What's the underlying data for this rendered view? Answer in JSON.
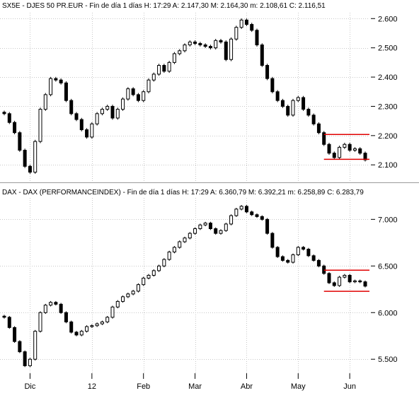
{
  "chart_data": [
    {
      "type": "candlestick",
      "header": "SX5E - DJES 50 PR.EUR - Fin de día 1 días  H: 17:29  A: 2.147,30  M: 2.164,30  m: 2.108,61  C: 2.116,51",
      "y_ticks": [
        "2.600",
        "2.500",
        "2.400",
        "2.300",
        "2.200",
        "2.100"
      ],
      "y_tick_values": [
        2600,
        2500,
        2400,
        2300,
        2200,
        2100
      ],
      "ylim": [
        2045,
        2620
      ],
      "grid": true,
      "series": [
        {
          "values": [
            2275,
            2245,
            2210,
            2150,
            2095,
            2075,
            2180,
            2290,
            2340,
            2395,
            2390,
            2380,
            2320,
            2275,
            2255,
            2220,
            2195,
            2240,
            2275,
            2290,
            2300,
            2260,
            2290,
            2325,
            2360,
            2340,
            2320,
            2350,
            2390,
            2410,
            2440,
            2420,
            2450,
            2480,
            2490,
            2510,
            2520,
            2515,
            2510,
            2505,
            2500,
            2525,
            2520,
            2460,
            2530,
            2570,
            2595,
            2580,
            2560,
            2510,
            2440,
            2395,
            2350,
            2320,
            2300,
            2270,
            2320,
            2330,
            2290,
            2270,
            2240,
            2210,
            2170,
            2140,
            2125,
            2160,
            2170,
            2150,
            2155,
            2140,
            2117
          ]
        }
      ],
      "bands": [
        {
          "from": 2119,
          "to": 2204,
          "color": "#e00000"
        }
      ]
    },
    {
      "type": "candlestick",
      "header": "DAX - DAX (PERFORMANCEINDEX) - Fin de día 1 días  H: 17:29  A: 6.360,79  M: 6.392,21  m: 6.258,89  C: 6.283,79",
      "y_ticks": [
        "7.000",
        "6.500",
        "6.000",
        "5.500"
      ],
      "y_tick_values": [
        7000,
        6500,
        6000,
        5500
      ],
      "ylim": [
        5350,
        7230
      ],
      "grid": true,
      "series": [
        {
          "values": [
            5950,
            5840,
            5690,
            5580,
            5430,
            5500,
            5800,
            6000,
            6080,
            6110,
            6090,
            6000,
            5900,
            5790,
            5760,
            5800,
            5850,
            5860,
            5880,
            5900,
            5950,
            6060,
            6120,
            6170,
            6200,
            6230,
            6300,
            6370,
            6400,
            6450,
            6500,
            6570,
            6650,
            6700,
            6760,
            6800,
            6850,
            6900,
            6940,
            6960,
            6900,
            6850,
            6880,
            6950,
            7040,
            7110,
            7140,
            7080,
            7050,
            7030,
            7000,
            6850,
            6700,
            6600,
            6560,
            6540,
            6620,
            6700,
            6680,
            6610,
            6560,
            6500,
            6420,
            6320,
            6290,
            6380,
            6400,
            6330,
            6340,
            6330,
            6284
          ]
        }
      ],
      "bands": [
        {
          "from": 6228,
          "to": 6455,
          "color": "#e00000"
        }
      ]
    }
  ],
  "x_axis": {
    "labels": [
      "Dic",
      "12",
      "Feb",
      "Mar",
      "Abr",
      "May",
      "Jun"
    ],
    "label_indices": [
      5,
      17,
      27,
      37,
      47,
      57,
      67
    ]
  },
  "colors": {
    "grid": "#c8c8c8",
    "candle": "#000000",
    "band": "#e00000",
    "background": "#ffffff"
  }
}
